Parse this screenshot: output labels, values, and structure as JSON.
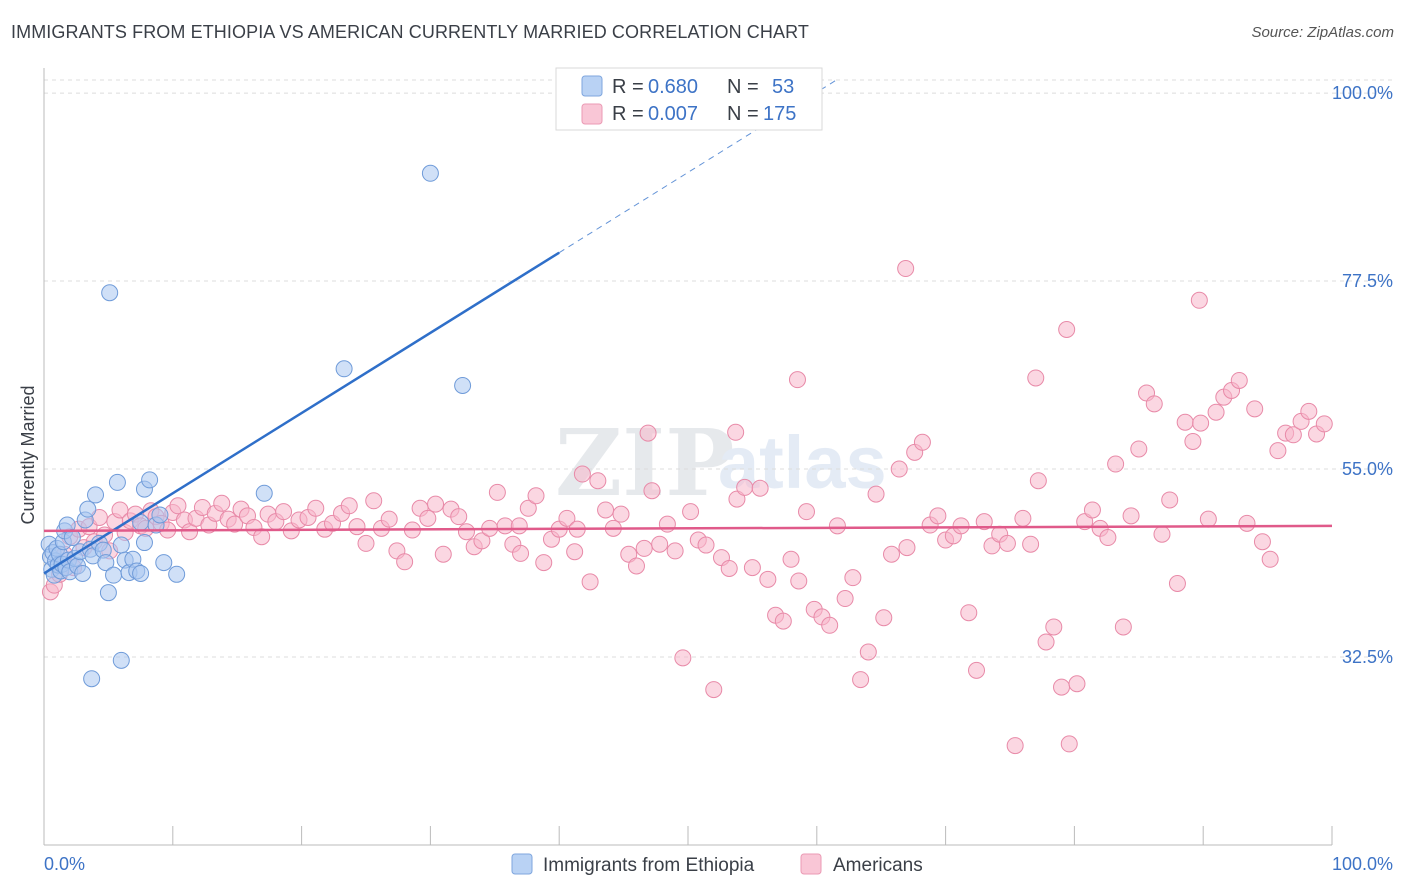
{
  "header": {
    "title": "IMMIGRANTS FROM ETHIOPIA VS AMERICAN CURRENTLY MARRIED CORRELATION CHART",
    "source": "Source: ZipAtlas.com"
  },
  "watermark": {
    "zip": "ZIP",
    "atlas": "atlas"
  },
  "colors": {
    "blue_fill": "#a9c7f0",
    "blue_stroke": "#6f9bd9",
    "blue_line": "#2f6fc9",
    "pink_fill": "#f7b6cb",
    "pink_stroke": "#e88aa8",
    "pink_line": "#e05a8a",
    "tick_text": "#3d73c6",
    "grid": "#dcdcdc"
  },
  "legend": {
    "rows": [
      {
        "r_label": "R =",
        "r_value": "0.680",
        "n_label": "N =",
        "n_value": "53"
      },
      {
        "r_label": "R =",
        "r_value": "0.007",
        "n_label": "N =",
        "n_value": "175"
      }
    ]
  },
  "bottom_legend": {
    "series1": "Immigrants from Ethiopia",
    "series2": "Americans"
  },
  "chart_data": {
    "type": "scatter",
    "title": "IMMIGRANTS FROM ETHIOPIA VS AMERICAN CURRENTLY MARRIED CORRELATION CHART",
    "xlabel": "",
    "ylabel": "Currently Married",
    "xlim": [
      0,
      100
    ],
    "ylim": [
      10,
      103
    ],
    "x_tick_labels": [
      "0.0%",
      "100.0%"
    ],
    "y_ticks": [
      32.5,
      55.0,
      77.5,
      100.0
    ],
    "y_tick_labels": [
      "32.5%",
      "55.0%",
      "77.5%",
      "100.0%"
    ],
    "grid": true,
    "series": [
      {
        "name": "Immigrants from Ethiopia",
        "R": 0.68,
        "N": 53,
        "trend": {
          "x0": 0,
          "y0": 42.5,
          "x1": 40,
          "y1": 80.9,
          "dash_to_x": 100
        },
        "points": [
          [
            0.4,
            46
          ],
          [
            0.5,
            44.5
          ],
          [
            0.6,
            43
          ],
          [
            0.7,
            45
          ],
          [
            0.8,
            42.3
          ],
          [
            0.9,
            44
          ],
          [
            1.0,
            45.5
          ],
          [
            1.1,
            43.5
          ],
          [
            1.2,
            44.8
          ],
          [
            1.3,
            42.8
          ],
          [
            1.4,
            43.6
          ],
          [
            1.5,
            46.3
          ],
          [
            1.6,
            47.6
          ],
          [
            1.7,
            43.2
          ],
          [
            1.8,
            48.3
          ],
          [
            1.9,
            44.1
          ],
          [
            2.0,
            42.7
          ],
          [
            2.2,
            46.8
          ],
          [
            2.4,
            44.3
          ],
          [
            2.6,
            43.4
          ],
          [
            2.8,
            45.1
          ],
          [
            3.0,
            42.5
          ],
          [
            3.2,
            48.9
          ],
          [
            3.4,
            50.2
          ],
          [
            3.6,
            45.4
          ],
          [
            3.8,
            44.6
          ],
          [
            4.0,
            51.9
          ],
          [
            4.3,
            46.1
          ],
          [
            4.6,
            45.3
          ],
          [
            4.8,
            43.8
          ],
          [
            5.0,
            40.2
          ],
          [
            5.4,
            42.3
          ],
          [
            5.7,
            53.4
          ],
          [
            6.0,
            45.9
          ],
          [
            6.3,
            44.1
          ],
          [
            6.6,
            42.6
          ],
          [
            6.9,
            44.2
          ],
          [
            7.2,
            42.8
          ],
          [
            7.5,
            42.5
          ],
          [
            7.8,
            46.2
          ],
          [
            7.5,
            48.6
          ],
          [
            7.8,
            52.6
          ],
          [
            8.2,
            53.7
          ],
          [
            8.7,
            48.3
          ],
          [
            9.0,
            49.5
          ],
          [
            9.3,
            43.8
          ],
          [
            10.3,
            42.4
          ],
          [
            3.7,
            29.9
          ],
          [
            6.0,
            32.1
          ],
          [
            5.1,
            76.1
          ],
          [
            17.1,
            52.1
          ],
          [
            23.3,
            67.0
          ],
          [
            30.0,
            90.4
          ],
          [
            32.5,
            65.0
          ]
        ]
      },
      {
        "name": "Americans",
        "R": 0.007,
        "N": 175,
        "trend": {
          "x0": 0,
          "y0": 47.6,
          "x1": 100,
          "y1": 48.2
        },
        "points": [
          [
            0.5,
            40.3
          ],
          [
            0.8,
            41.1
          ],
          [
            1.2,
            42.4
          ],
          [
            1.6,
            44.8
          ],
          [
            2.0,
            46.9
          ],
          [
            2.3,
            43.2
          ],
          [
            2.7,
            47.8
          ],
          [
            3.1,
            45.6
          ],
          [
            3.5,
            48.1
          ],
          [
            3.9,
            46.3
          ],
          [
            4.3,
            49.2
          ],
          [
            4.7,
            47.1
          ],
          [
            5.1,
            45.2
          ],
          [
            5.5,
            48.7
          ],
          [
            5.9,
            50.1
          ],
          [
            6.3,
            47.4
          ],
          [
            6.7,
            48.8
          ],
          [
            7.1,
            49.6
          ],
          [
            7.5,
            48.2
          ],
          [
            7.9,
            47.9
          ],
          [
            8.3,
            50.0
          ],
          [
            8.7,
            49.3
          ],
          [
            9.1,
            48.5
          ],
          [
            9.6,
            47.7
          ],
          [
            10.0,
            49.8
          ],
          [
            10.4,
            50.6
          ],
          [
            10.9,
            48.9
          ],
          [
            11.3,
            47.5
          ],
          [
            11.8,
            49.1
          ],
          [
            12.3,
            50.4
          ],
          [
            12.8,
            48.3
          ],
          [
            13.3,
            49.7
          ],
          [
            13.8,
            50.9
          ],
          [
            14.3,
            49.0
          ],
          [
            14.8,
            48.4
          ],
          [
            15.3,
            50.2
          ],
          [
            15.8,
            49.4
          ],
          [
            16.3,
            48.0
          ],
          [
            16.9,
            46.9
          ],
          [
            17.4,
            49.6
          ],
          [
            18.0,
            48.7
          ],
          [
            18.6,
            49.9
          ],
          [
            19.2,
            47.6
          ],
          [
            19.8,
            48.9
          ],
          [
            20.5,
            49.2
          ],
          [
            21.1,
            50.3
          ],
          [
            21.8,
            47.8
          ],
          [
            22.4,
            48.5
          ],
          [
            23.1,
            49.7
          ],
          [
            23.7,
            50.6
          ],
          [
            24.3,
            48.1
          ],
          [
            25.0,
            46.1
          ],
          [
            25.6,
            51.2
          ],
          [
            26.2,
            47.9
          ],
          [
            26.8,
            49.0
          ],
          [
            27.4,
            45.2
          ],
          [
            28.0,
            43.9
          ],
          [
            28.6,
            47.7
          ],
          [
            29.2,
            50.3
          ],
          [
            29.8,
            49.1
          ],
          [
            30.4,
            50.8
          ],
          [
            31.0,
            44.8
          ],
          [
            31.6,
            50.2
          ],
          [
            32.2,
            49.3
          ],
          [
            32.8,
            47.5
          ],
          [
            33.4,
            45.7
          ],
          [
            34.0,
            46.4
          ],
          [
            34.6,
            47.9
          ],
          [
            35.2,
            52.2
          ],
          [
            35.8,
            48.2
          ],
          [
            36.4,
            46.0
          ],
          [
            37.0,
            44.9
          ],
          [
            37.6,
            50.3
          ],
          [
            38.2,
            51.8
          ],
          [
            38.8,
            43.8
          ],
          [
            39.4,
            46.6
          ],
          [
            40.0,
            47.8
          ],
          [
            40.6,
            49.1
          ],
          [
            41.2,
            45.1
          ],
          [
            41.8,
            54.4
          ],
          [
            42.4,
            41.5
          ],
          [
            43.0,
            53.6
          ],
          [
            43.6,
            50.1
          ],
          [
            44.2,
            47.9
          ],
          [
            44.8,
            49.6
          ],
          [
            45.4,
            44.8
          ],
          [
            46.0,
            43.4
          ],
          [
            46.6,
            45.5
          ],
          [
            47.2,
            52.4
          ],
          [
            47.8,
            46.0
          ],
          [
            48.4,
            48.4
          ],
          [
            49.0,
            45.2
          ],
          [
            49.6,
            32.4
          ],
          [
            50.2,
            49.9
          ],
          [
            50.8,
            46.5
          ],
          [
            51.4,
            45.9
          ],
          [
            52.0,
            28.6
          ],
          [
            52.6,
            44.4
          ],
          [
            53.2,
            43.1
          ],
          [
            53.8,
            51.4
          ],
          [
            54.4,
            52.8
          ],
          [
            55.0,
            43.2
          ],
          [
            55.6,
            52.7
          ],
          [
            56.2,
            41.8
          ],
          [
            56.8,
            37.5
          ],
          [
            57.4,
            36.8
          ],
          [
            58.0,
            44.2
          ],
          [
            58.6,
            41.6
          ],
          [
            59.2,
            49.9
          ],
          [
            59.8,
            38.2
          ],
          [
            60.4,
            37.3
          ],
          [
            61.0,
            36.3
          ],
          [
            61.6,
            48.2
          ],
          [
            62.2,
            39.5
          ],
          [
            62.8,
            42.0
          ],
          [
            63.4,
            29.8
          ],
          [
            64.0,
            33.1
          ],
          [
            64.6,
            52.0
          ],
          [
            65.2,
            37.2
          ],
          [
            65.8,
            44.8
          ],
          [
            66.4,
            55.0
          ],
          [
            67.0,
            45.6
          ],
          [
            67.6,
            57.0
          ],
          [
            68.2,
            58.2
          ],
          [
            68.8,
            48.3
          ],
          [
            69.4,
            49.4
          ],
          [
            70.0,
            46.5
          ],
          [
            70.6,
            47.0
          ],
          [
            71.2,
            48.2
          ],
          [
            71.8,
            37.8
          ],
          [
            72.4,
            30.9
          ],
          [
            73.0,
            48.7
          ],
          [
            73.6,
            45.8
          ],
          [
            74.2,
            47.2
          ],
          [
            74.8,
            46.1
          ],
          [
            75.4,
            21.9
          ],
          [
            76.0,
            49.1
          ],
          [
            76.6,
            46.0
          ],
          [
            77.2,
            53.6
          ],
          [
            77.8,
            34.3
          ],
          [
            78.4,
            36.1
          ],
          [
            79.0,
            28.9
          ],
          [
            79.6,
            22.1
          ],
          [
            80.2,
            29.3
          ],
          [
            80.8,
            48.7
          ],
          [
            81.4,
            50.1
          ],
          [
            82.0,
            47.9
          ],
          [
            82.6,
            46.8
          ],
          [
            83.2,
            55.6
          ],
          [
            83.8,
            36.1
          ],
          [
            84.4,
            49.4
          ],
          [
            85.0,
            57.4
          ],
          [
            85.6,
            64.1
          ],
          [
            86.2,
            62.8
          ],
          [
            86.8,
            47.2
          ],
          [
            87.4,
            51.3
          ],
          [
            88.0,
            41.3
          ],
          [
            88.6,
            60.6
          ],
          [
            89.2,
            58.3
          ],
          [
            89.8,
            60.5
          ],
          [
            90.4,
            49.0
          ],
          [
            91.0,
            61.8
          ],
          [
            91.6,
            63.6
          ],
          [
            92.2,
            64.4
          ],
          [
            92.8,
            65.6
          ],
          [
            93.4,
            48.5
          ],
          [
            94.0,
            62.2
          ],
          [
            94.6,
            46.3
          ],
          [
            95.2,
            44.2
          ],
          [
            95.8,
            57.2
          ],
          [
            96.4,
            59.3
          ],
          [
            97.0,
            59.1
          ],
          [
            97.6,
            60.7
          ],
          [
            98.2,
            61.9
          ],
          [
            98.8,
            59.2
          ],
          [
            99.4,
            60.4
          ],
          [
            66.9,
            79.0
          ],
          [
            58.5,
            65.7
          ],
          [
            79.4,
            71.7
          ],
          [
            77.0,
            65.9
          ],
          [
            89.7,
            75.2
          ],
          [
            46.9,
            59.3
          ],
          [
            53.7,
            59.4
          ],
          [
            36.9,
            48.2
          ],
          [
            41.4,
            47.8
          ]
        ]
      }
    ]
  },
  "axes": {
    "ylabel": "Currently Married"
  }
}
